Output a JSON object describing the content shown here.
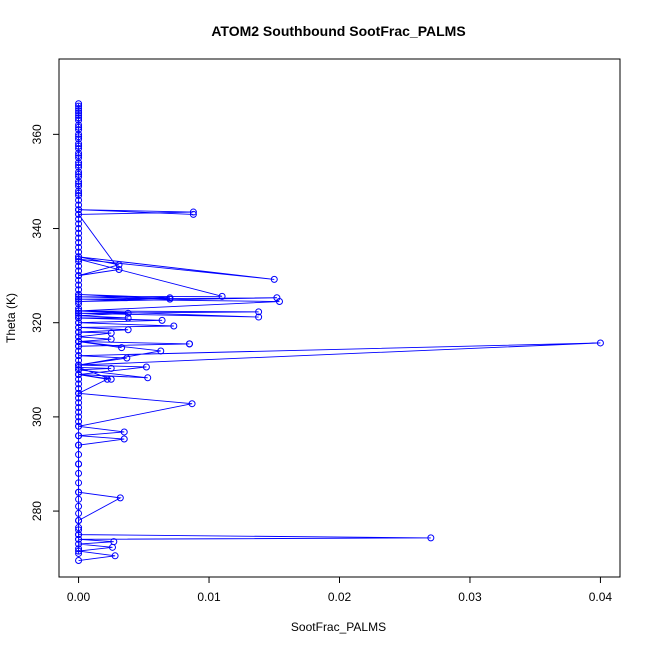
{
  "chart_data": {
    "type": "line",
    "title": "ATOM2 Southbound SootFrac_PALMS",
    "xlabel": "SootFrac_PALMS",
    "ylabel": "Theta (K)",
    "xlim": [
      -0.0015,
      0.0415
    ],
    "ylim": [
      266,
      376
    ],
    "xticks": [
      0,
      0.01,
      0.02,
      0.03,
      0.04
    ],
    "xtick_labels": [
      "0.00",
      "0.01",
      "0.02",
      "0.03",
      "0.04"
    ],
    "yticks": [
      280,
      300,
      320,
      340,
      360
    ],
    "ytick_labels": [
      "280",
      "300",
      "320",
      "340",
      "360"
    ],
    "grid": false,
    "legend": "none",
    "line_color": "#0000ff",
    "series": [
      {
        "x": [
          0,
          0.0028,
          0,
          0.0026,
          0,
          0.0027,
          0,
          0.027,
          0,
          0,
          0,
          0.0032,
          0,
          0,
          0,
          0.0035,
          0,
          0.0035,
          0,
          0.0087,
          0,
          0.0022,
          0,
          0.0053,
          0,
          0.0025,
          0,
          0.0025,
          0,
          0.0052,
          0,
          0.04,
          0,
          0.0037,
          0,
          0.0063,
          0,
          0.0033,
          0,
          0.0085,
          0,
          0.0085,
          0,
          0.0025,
          0,
          0.0025,
          0,
          0.0038,
          0,
          0.0073,
          0,
          0.0064,
          0,
          0.0038,
          0,
          0.0038,
          0,
          0.0138,
          0,
          0.0138,
          0,
          0.0154,
          0,
          0.0152,
          0,
          0.007,
          0,
          0.007,
          0,
          0.011,
          0,
          0.015,
          0,
          0.0031,
          0,
          0.0031,
          0,
          0.0088,
          0,
          0.0088,
          0
        ],
        "y": [
          269.5,
          270.5,
          271.5,
          272.3,
          273,
          273.5,
          274,
          274.3,
          275,
          276,
          278,
          282.8,
          284,
          290,
          294,
          295.3,
          296,
          296.8,
          298,
          302.8,
          305,
          308,
          309,
          308.3,
          310,
          310.3,
          310.5,
          308,
          309,
          310.6,
          311,
          315.7,
          313,
          312.5,
          311,
          314,
          316,
          314.7,
          316,
          315.5,
          315,
          315.5,
          316,
          316.5,
          317,
          317.8,
          318,
          318.5,
          319,
          319.3,
          320,
          320.5,
          321,
          321,
          321.5,
          322,
          322.5,
          321.2,
          322,
          322.3,
          322.5,
          324.5,
          325,
          325.3,
          324.5,
          325.3,
          326,
          325,
          325.5,
          325.6,
          333.5,
          329.2,
          334,
          332.3,
          330,
          331.3,
          343,
          343.5,
          344,
          343,
          344
        ]
      },
      {
        "x": [
          0,
          0,
          0,
          0,
          0,
          0,
          0,
          0,
          0,
          0,
          0,
          0,
          0,
          0,
          0,
          0,
          0,
          0,
          0,
          0,
          0,
          0,
          0,
          0,
          0,
          0,
          0,
          0,
          0,
          0,
          0,
          0,
          0,
          0,
          0,
          0,
          0,
          0,
          0,
          0,
          0,
          0,
          0,
          0,
          0,
          0,
          0,
          0,
          0,
          0,
          0,
          0,
          0,
          0,
          0,
          0,
          0,
          0,
          0,
          0,
          0,
          0,
          0,
          0,
          0,
          0,
          0,
          0,
          0,
          0,
          0,
          0,
          0,
          0,
          0,
          0,
          0,
          0,
          0,
          0,
          0,
          0,
          0,
          0,
          0,
          0,
          0,
          0,
          0,
          0,
          0,
          0,
          0,
          0,
          0,
          0,
          0
        ],
        "y": [
          271,
          272,
          274,
          275,
          276.5,
          278,
          279.5,
          281,
          282.5,
          284,
          286,
          288,
          290,
          292,
          294,
          296,
          298,
          299,
          300,
          301,
          302,
          303,
          304,
          305,
          306,
          307,
          308,
          309,
          310,
          311,
          312,
          313,
          314,
          315,
          316,
          317,
          318,
          319,
          320,
          321,
          322,
          323,
          324,
          325,
          326,
          327,
          328,
          329,
          330,
          331,
          332,
          333,
          334,
          335,
          336,
          337,
          338,
          339,
          340,
          341,
          342,
          343,
          344,
          345,
          346,
          347,
          348,
          349,
          350,
          351,
          352,
          353,
          354,
          355,
          356,
          357,
          358,
          359,
          360,
          361,
          362,
          363,
          364,
          365,
          366,
          366.5,
          365.5,
          364.5,
          363.5,
          361.5,
          359.5,
          357.5,
          355.5,
          353.5,
          351.5,
          349.5,
          347.5
        ]
      }
    ]
  }
}
